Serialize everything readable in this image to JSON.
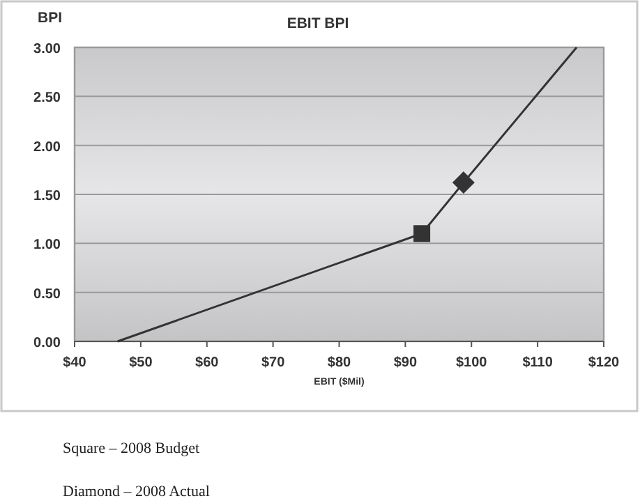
{
  "chart_data": {
    "type": "line",
    "title": "EBIT BPI",
    "xlabel": "EBIT ($Mil)",
    "ylabel": "BPI",
    "xlim": [
      40,
      120
    ],
    "xticks": [
      {
        "value": 40,
        "label": "$40"
      },
      {
        "value": 50,
        "label": "$50"
      },
      {
        "value": 60,
        "label": "$60"
      },
      {
        "value": 70,
        "label": "$70"
      },
      {
        "value": 80,
        "label": "$80"
      },
      {
        "value": 90,
        "label": "$90"
      },
      {
        "value": 100,
        "label": "$100"
      },
      {
        "value": 110,
        "label": "$110"
      },
      {
        "value": 120,
        "label": "$120"
      }
    ],
    "ylim": [
      0,
      3
    ],
    "yticks": [
      {
        "value": 0,
        "label": "0.00"
      },
      {
        "value": 0.5,
        "label": "0.50"
      },
      {
        "value": 1,
        "label": "1.00"
      },
      {
        "value": 1.5,
        "label": "1.50"
      },
      {
        "value": 2,
        "label": "2.00"
      },
      {
        "value": 2.5,
        "label": "2.50"
      },
      {
        "value": 3,
        "label": "3.00"
      }
    ],
    "grid": "y",
    "series": [
      {
        "color": "#333333",
        "x": [
          46.5,
          92.5,
          98.8,
          115.9
        ],
        "values": [
          0,
          1.1,
          1.62,
          3.0
        ],
        "marker": "none",
        "line_style": "solid"
      },
      {
        "type": "scatter",
        "color": "#333333",
        "x": [
          92.5
        ],
        "values": [
          1.1
        ],
        "marker": "square"
      },
      {
        "type": "scatter",
        "color": "#333333",
        "x": [
          98.8
        ],
        "values": [
          1.62
        ],
        "marker": "diamond"
      }
    ],
    "annotations": [
      "Square – 2008 Budget",
      "Diamond – 2008 Actual"
    ]
  }
}
